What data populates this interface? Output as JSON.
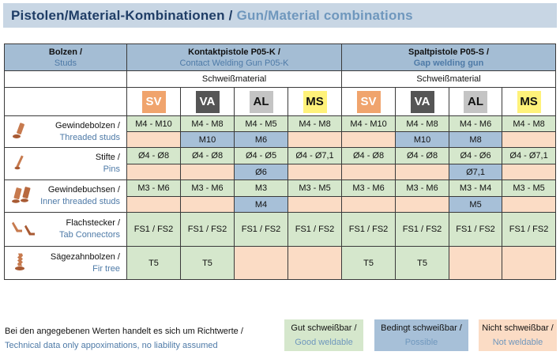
{
  "title": {
    "de": "Pistolen/Material-Kombinationen",
    "sep": "/",
    "en": "Gun/Material combinations"
  },
  "header": {
    "studs": {
      "de": "Bolzen /",
      "en": "Studs"
    },
    "gun_k": {
      "de": "Kontaktpistole P05-K /",
      "en": "Contact Welding Gun P05-K"
    },
    "gun_s": {
      "de": "Spaltpistole P05-S /",
      "en": "Gap welding gun"
    },
    "material_label": "Schweißmaterial"
  },
  "materials": [
    "SV",
    "VA",
    "AL",
    "MS",
    "SV",
    "VA",
    "AL",
    "MS"
  ],
  "parts": [
    {
      "de": "Gewindebolzen /",
      "en": "Threaded studs",
      "icon": "threaded-stud-icon",
      "row1": [
        "M4 - M10",
        "M4 - M8",
        "M4 - M5",
        "M4 - M8",
        "M4 - M10",
        "M4 - M8",
        "M4 - M6",
        "M4 - M8"
      ],
      "row2": [
        "",
        "M10",
        "M6",
        "",
        "",
        "M10",
        "M8",
        ""
      ]
    },
    {
      "de": "Stifte /",
      "en": "Pins",
      "icon": "pin-icon",
      "row1": [
        "Ø4 - Ø8",
        "Ø4 - Ø8",
        "Ø4 - Ø5",
        "Ø4 - Ø7,1",
        "Ø4 - Ø8",
        "Ø4 - Ø8",
        "Ø4 - Ø6",
        "Ø4 - Ø7,1"
      ],
      "row2": [
        "",
        "",
        "Ø6",
        "",
        "",
        "",
        "Ø7,1",
        ""
      ]
    },
    {
      "de": "Gewindebuchsen /",
      "en": "Inner threaded studs",
      "icon": "inner-threaded-stud-icon",
      "row1": [
        "M3 - M6",
        "M3 - M6",
        "M3",
        "M3 - M5",
        "M3 - M6",
        "M3 - M6",
        "M3 - M4",
        "M3 - M5"
      ],
      "row2": [
        "",
        "",
        "M4",
        "",
        "",
        "",
        "M5",
        ""
      ]
    },
    {
      "de": "Flachstecker /",
      "en": "Tab Connectors",
      "icon": "tab-connector-icon",
      "row1": [
        "FS1 / FS2",
        "FS1 / FS2",
        "FS1 / FS2",
        "FS1 / FS2",
        "FS1 / FS2",
        "FS1 / FS2",
        "FS1 / FS2",
        "FS1 / FS2"
      ]
    },
    {
      "de": "Sägezahnbolzen  /",
      "en": "Fir tree",
      "icon": "fir-tree-stud-icon",
      "row1": [
        "T5",
        "T5",
        "",
        "",
        "T5",
        "T5",
        "",
        ""
      ]
    }
  ],
  "footer": {
    "de": "Bei den angegebenen Werten handelt es sich um Richtwerte /",
    "en": "Technical data only appoximations, no liability assumed"
  },
  "legend": {
    "good": {
      "de": "Gut schweißbar /",
      "en": "Good weldable",
      "color": "#d5e7cc"
    },
    "possible": {
      "de": "Bedingt schweißbar /",
      "en": "Possible",
      "color": "#a7c0d8"
    },
    "not": {
      "de": "Nicht schweißbar /",
      "en": "Not weldable",
      "color": "#fbdcc5"
    }
  }
}
